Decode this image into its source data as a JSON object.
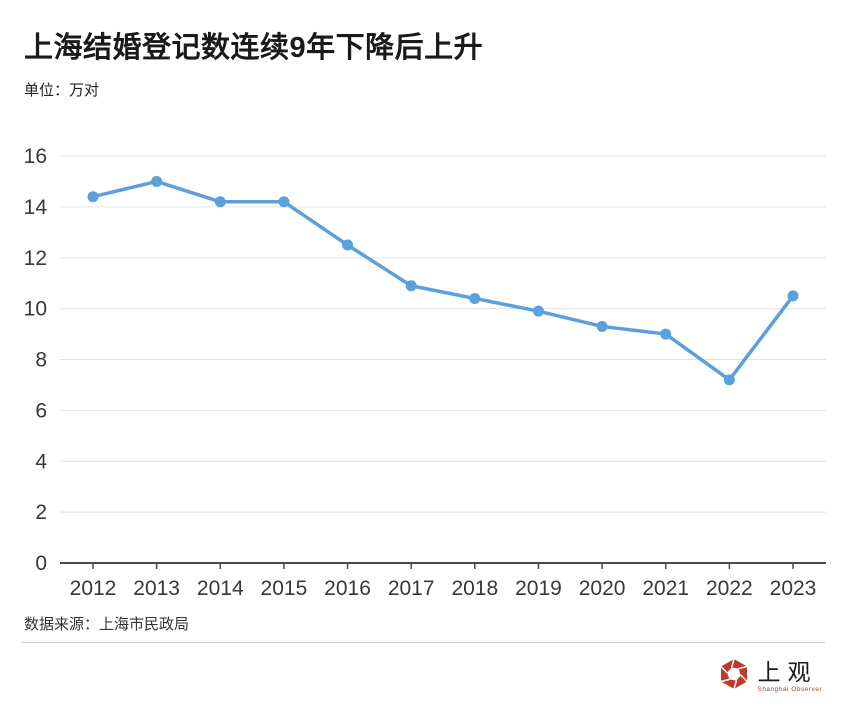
{
  "page": {
    "title": "上海结婚登记数连续9年下降后上升",
    "unit_label": "单位：万对",
    "source": "数据来源：上海市民政局",
    "background_color": "#ffffff"
  },
  "logo": {
    "name": "上观",
    "subtext": "Shanghai Observer",
    "brand_color": "#c0392b",
    "icon": "aperture-hexagon-icon"
  },
  "chart_data": {
    "type": "line",
    "title": "上海结婚登记数连续9年下降后上升",
    "unit_label": "单位：万对",
    "categories": [
      "2012",
      "2013",
      "2014",
      "2015",
      "2016",
      "2017",
      "2018",
      "2019",
      "2020",
      "2021",
      "2022",
      "2023"
    ],
    "values": [
      14.4,
      15.0,
      14.2,
      14.2,
      12.5,
      10.9,
      10.4,
      9.9,
      9.3,
      9.0,
      7.2,
      10.5
    ],
    "series_name": "结婚登记数",
    "xlabel": "",
    "ylabel": "万对",
    "ylim": [
      0,
      16
    ],
    "yticks": [
      0,
      2,
      4,
      6,
      8,
      10,
      12,
      14,
      16
    ],
    "grid": true,
    "legend": "none",
    "line_color": "#5b9fdb",
    "marker": "circle",
    "gridline_color": "#e3e3e3",
    "axis_color": "#4a4a4a",
    "tick_label_color": "#383838"
  }
}
